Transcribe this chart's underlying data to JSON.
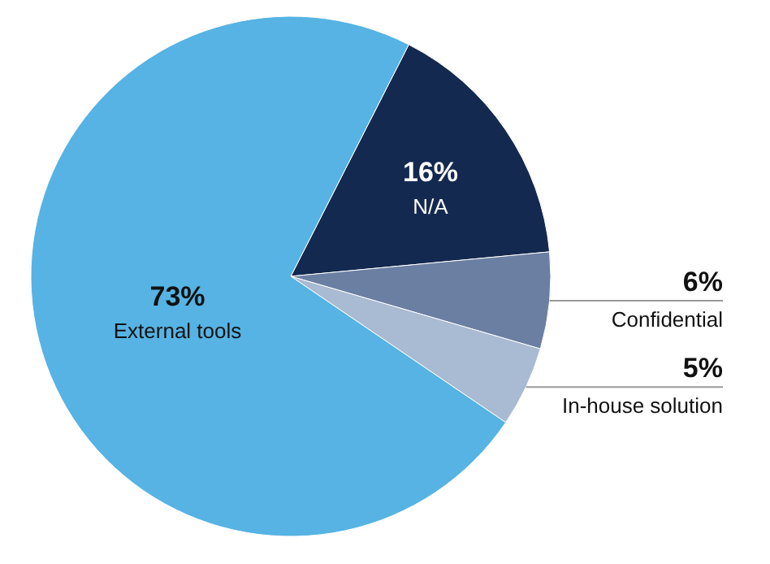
{
  "chart_data": {
    "type": "pie",
    "categories": [
      "N/A",
      "Confidential",
      "In-house solution",
      "External tools"
    ],
    "values": [
      16,
      6,
      5,
      73
    ],
    "value_labels": [
      "16%",
      "6%",
      "5%",
      "73%"
    ],
    "colors": [
      "#14294f",
      "#6b7fa3",
      "#a9bad3",
      "#56b3e3"
    ]
  }
}
